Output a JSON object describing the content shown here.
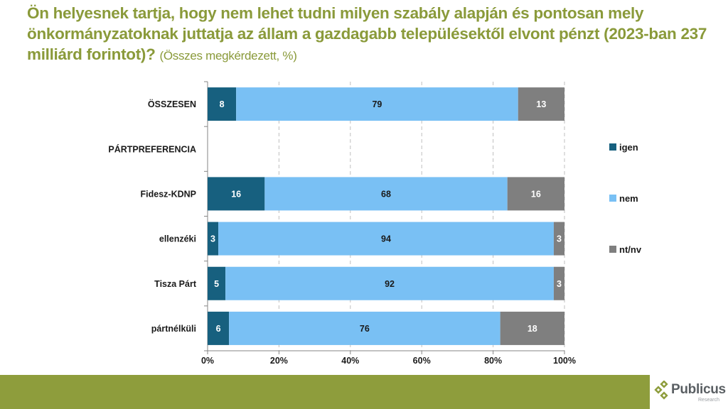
{
  "header": {
    "title": "Ön helyesnek tartja, hogy nem lehet tudni milyen szabály alapján és pontosan mely önkormányzatoknak juttatja az állam a gazdagabb településektől elvont pénzt (2023-ban 237 milliárd forintot)?",
    "subtitle": "(Összes megkérdezett, %)"
  },
  "colors": {
    "igen": "#17607f",
    "nem": "#79c0f4",
    "ntnv": "#7f7f7f",
    "title": "#8a9a3a",
    "footer": "#8e9d3c"
  },
  "chart_data": {
    "type": "bar",
    "orientation": "horizontal",
    "stacked": true,
    "title": "Ön helyesnek tartja, hogy nem lehet tudni milyen szabály alapján és pontosan mely önkormányzatoknak juttatja az állam a gazdagabb településektől elvont pénzt (2023-ban 237 milliárd forintot)? (Összes megkérdezett, %)",
    "categories": [
      "ÖSSZESEN",
      "PÁRTPREFERENCIA",
      "Fidesz-KDNP",
      "ellenzéki",
      "Tisza Párt",
      "pártnélküli"
    ],
    "series": [
      {
        "name": "igen",
        "values": [
          8,
          null,
          16,
          3,
          5,
          6
        ]
      },
      {
        "name": "nem",
        "values": [
          79,
          null,
          68,
          94,
          92,
          76
        ]
      },
      {
        "name": "nt/nv",
        "values": [
          13,
          null,
          16,
          3,
          3,
          18
        ]
      }
    ],
    "xlim": [
      0,
      100
    ],
    "xticks": [
      "0%",
      "20%",
      "40%",
      "60%",
      "80%",
      "100%"
    ],
    "xlabel": "",
    "ylabel": "",
    "grid": "vertical dashed",
    "legend": "right"
  },
  "logo": {
    "name": "Publicus",
    "sub": "Research"
  }
}
